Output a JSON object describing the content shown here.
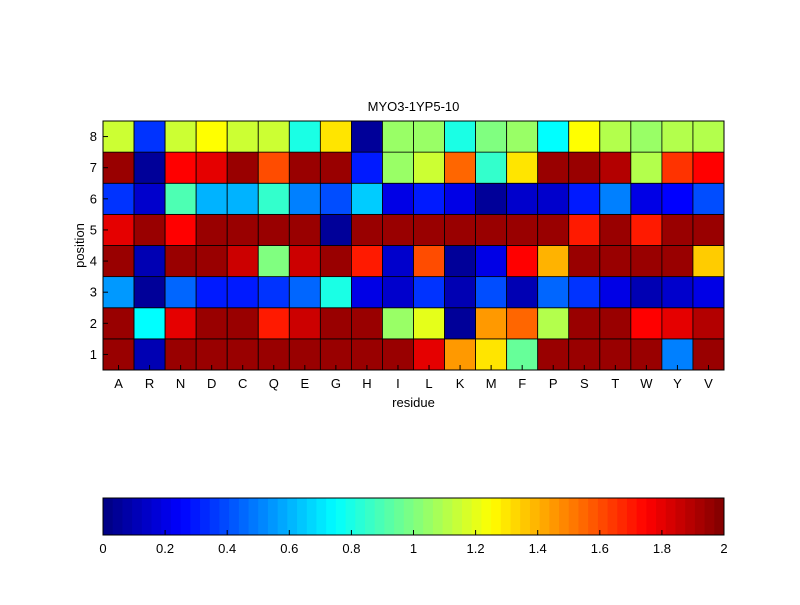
{
  "chart_data": {
    "type": "heatmap",
    "title": "MYO3-1YP5-10",
    "xlabel": "residue",
    "ylabel": "position",
    "x_categories": [
      "A",
      "R",
      "N",
      "D",
      "C",
      "Q",
      "E",
      "G",
      "H",
      "I",
      "L",
      "K",
      "M",
      "F",
      "P",
      "S",
      "T",
      "W",
      "Y",
      "V"
    ],
    "y_categories": [
      "1",
      "2",
      "3",
      "4",
      "5",
      "6",
      "7",
      "8"
    ],
    "values": [
      [
        1.95,
        0.1,
        1.95,
        1.95,
        1.95,
        1.95,
        1.95,
        1.95,
        1.95,
        1.95,
        1.8,
        1.45,
        1.3,
        0.95,
        1.95,
        1.95,
        1.95,
        1.95,
        0.5,
        1.95
      ],
      [
        1.95,
        0.75,
        1.8,
        1.95,
        1.95,
        1.7,
        1.85,
        1.95,
        1.95,
        1.05,
        1.2,
        0.05,
        1.45,
        1.55,
        1.1,
        1.95,
        1.95,
        1.75,
        1.8,
        1.9
      ],
      [
        0.55,
        0.05,
        0.45,
        0.3,
        0.3,
        0.35,
        0.45,
        0.8,
        0.2,
        0.15,
        0.35,
        0.1,
        0.4,
        0.1,
        0.45,
        0.35,
        0.2,
        0.1,
        0.15,
        0.2
      ],
      [
        1.95,
        0.1,
        1.95,
        1.95,
        1.85,
        1.0,
        1.85,
        1.95,
        1.7,
        0.15,
        1.6,
        0.05,
        0.2,
        1.75,
        1.4,
        1.95,
        1.95,
        1.95,
        1.95,
        1.35
      ],
      [
        1.8,
        1.95,
        1.75,
        1.95,
        1.95,
        1.95,
        1.95,
        0.05,
        1.95,
        1.95,
        1.95,
        1.95,
        1.95,
        1.95,
        1.95,
        1.7,
        1.95,
        1.7,
        1.95,
        1.95
      ],
      [
        0.35,
        0.15,
        0.9,
        0.6,
        0.6,
        0.85,
        0.5,
        0.4,
        0.65,
        0.2,
        0.3,
        0.2,
        0.05,
        0.15,
        0.15,
        0.3,
        0.5,
        0.2,
        0.25,
        0.4
      ],
      [
        1.95,
        0.05,
        1.75,
        1.8,
        1.95,
        1.6,
        1.95,
        1.95,
        0.3,
        1.05,
        1.15,
        1.55,
        0.85,
        1.3,
        1.95,
        1.95,
        1.9,
        1.1,
        1.65,
        1.75
      ],
      [
        1.15,
        0.35,
        1.15,
        1.25,
        1.15,
        1.15,
        0.8,
        1.3,
        0.05,
        1.05,
        1.05,
        0.8,
        1.0,
        1.05,
        0.75,
        1.25,
        1.1,
        1.05,
        1.1,
        1.1
      ]
    ],
    "color_range": [
      0,
      2
    ],
    "colormap": "jet",
    "colorbar_ticks": [
      "0",
      "0.2",
      "0.4",
      "0.6",
      "0.8",
      "1",
      "1.2",
      "1.4",
      "1.6",
      "1.8",
      "2"
    ],
    "colorbar_tick_values": [
      0,
      0.2,
      0.4,
      0.6,
      0.8,
      1,
      1.2,
      1.4,
      1.6,
      1.8,
      2
    ],
    "colorbar_position": "bottom"
  }
}
